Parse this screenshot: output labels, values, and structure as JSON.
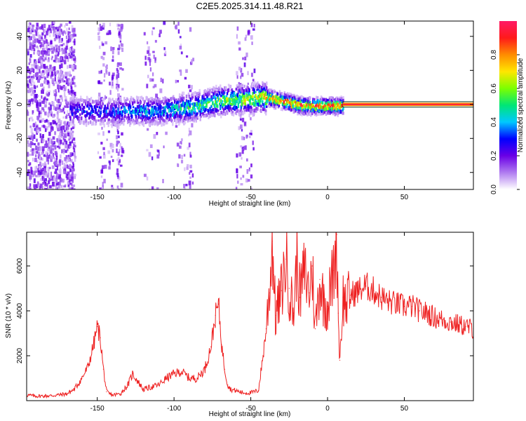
{
  "figure": {
    "title": "C2E5.2025.314.11.48.R21"
  },
  "chart_data": [
    {
      "type": "heatmap",
      "title": "C2E5.2025.314.11.48.R21",
      "xlabel": "Height of straight line (km)",
      "ylabel": "Frequency (Hz)",
      "xlim": [
        -196,
        95
      ],
      "ylim": [
        -50,
        49
      ],
      "xticks": [
        -150,
        -100,
        -50,
        0,
        50
      ],
      "yticks": [
        -40,
        -20,
        0,
        20,
        40
      ],
      "colorbar": {
        "label": "Normalized spectral amplitude",
        "range": [
          0,
          1
        ],
        "ticks": [
          0.0,
          0.2,
          0.4,
          0.6,
          0.8
        ],
        "tick_labels": [
          "0.0",
          "0.2",
          "0.4",
          "0.6",
          "0.8"
        ],
        "colors": [
          "#ffffff",
          "#b07cf0",
          "#6a00e6",
          "#0000ff",
          "#00c8ff",
          "#00e676",
          "#7cff00",
          "#ffe600",
          "#ff8c00",
          "#ff1a1a",
          "#ff1a66"
        ]
      },
      "ridge": {
        "description_points_x": [
          -165,
          -150,
          -140,
          -130,
          -120,
          -110,
          -100,
          -90,
          -80,
          -70,
          -60,
          -50,
          -45,
          -40,
          -35,
          -30,
          -25,
          -20,
          -10,
          0,
          10,
          95
        ],
        "center_freq_hz": [
          -3,
          -3,
          -3.5,
          -3,
          -3,
          -3,
          -2,
          -1,
          1,
          3,
          3.5,
          4,
          5,
          5,
          4,
          3,
          2,
          0.5,
          0,
          0,
          0,
          0
        ],
        "peak_amplitude": [
          0.35,
          0.35,
          0.35,
          0.4,
          0.45,
          0.45,
          0.5,
          0.55,
          0.6,
          0.65,
          0.65,
          0.7,
          0.75,
          0.85,
          0.9,
          0.9,
          0.95,
          0.95,
          0.95,
          0.95,
          0.95,
          0.95
        ]
      }
    },
    {
      "type": "line",
      "xlabel": "Height of straight line (km)",
      "ylabel": "SNR (10 * v/v)",
      "xlim": [
        -196,
        95
      ],
      "ylim": [
        0,
        7500
      ],
      "xticks": [
        -150,
        -100,
        -50,
        0,
        50
      ],
      "yticks": [
        2000,
        4000,
        6000
      ],
      "series": [
        {
          "name": "SNR",
          "color": "#ee2020",
          "x": [
            -196,
            -190,
            -180,
            -170,
            -165,
            -160,
            -156,
            -152,
            -150,
            -148,
            -146,
            -144,
            -142,
            -140,
            -135,
            -130,
            -127,
            -124,
            -120,
            -115,
            -110,
            -105,
            -100,
            -95,
            -90,
            -85,
            -80,
            -76,
            -73,
            -71,
            -69,
            -67,
            -65,
            -63,
            -60,
            -55,
            -50,
            -45,
            -42,
            -40,
            -38,
            -36,
            -35,
            -34,
            -32,
            -30,
            -27,
            -25,
            -22,
            -20,
            -18,
            -15,
            -12,
            -10,
            -8,
            -5,
            -3,
            0,
            2,
            4,
            6,
            7,
            8,
            10,
            12,
            15,
            20,
            25,
            30,
            35,
            40,
            45,
            50,
            55,
            60,
            65,
            70,
            75,
            80,
            85,
            90,
            95
          ],
          "y": [
            250,
            200,
            220,
            300,
            500,
            1000,
            1500,
            2600,
            3300,
            2800,
            1400,
            400,
            300,
            250,
            300,
            700,
            1200,
            900,
            500,
            600,
            700,
            1000,
            1200,
            1300,
            1000,
            1000,
            1400,
            2400,
            3800,
            4300,
            2500,
            1400,
            700,
            500,
            450,
            350,
            350,
            450,
            2000,
            3200,
            4800,
            7100,
            5600,
            3800,
            4200,
            4900,
            6300,
            5000,
            3900,
            6400,
            4600,
            5800,
            4800,
            6000,
            3200,
            5400,
            4600,
            4200,
            5000,
            5800,
            7400,
            3900,
            1800,
            4600,
            4300,
            4700,
            4900,
            5100,
            4900,
            4600,
            4400,
            4300,
            4200,
            4200,
            4000,
            3900,
            3700,
            3600,
            3500,
            3400,
            3300,
            3200
          ]
        }
      ]
    }
  ]
}
